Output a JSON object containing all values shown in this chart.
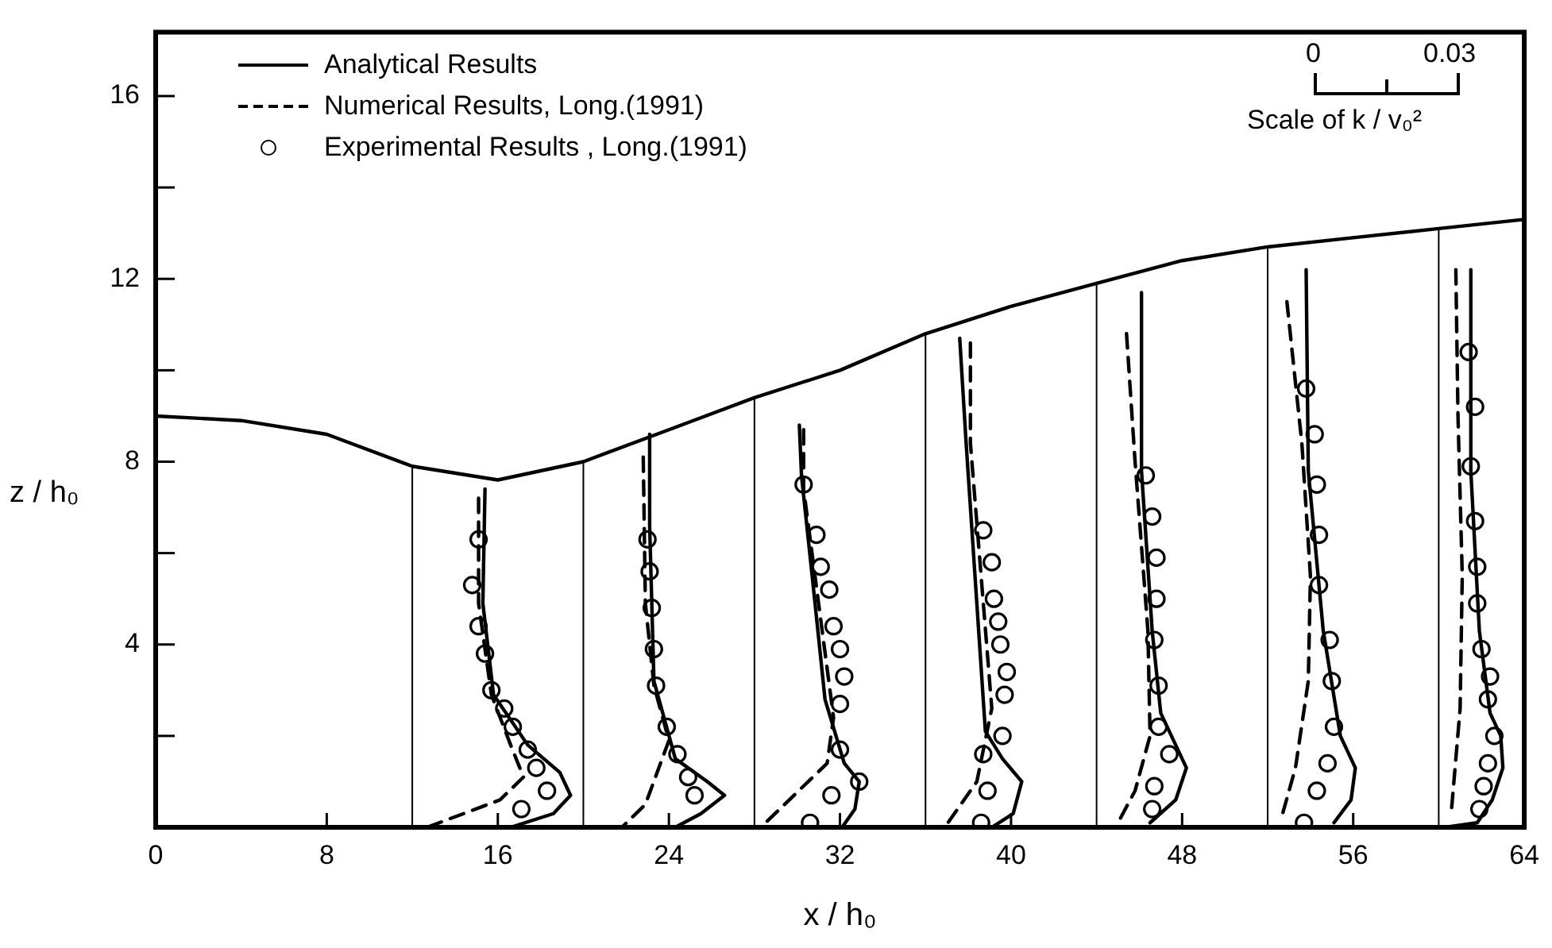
{
  "chart_data": {
    "type": "line",
    "xlabel": "x / h₀",
    "ylabel": "z / h₀",
    "xlim": [
      0,
      64
    ],
    "ylim": [
      0,
      17.4
    ],
    "xticks": [
      0,
      8,
      16,
      24,
      32,
      40,
      48,
      56,
      64
    ],
    "yticks": [
      {
        "value": 2,
        "label": null
      },
      4,
      {
        "value": 6,
        "label": null
      },
      8,
      {
        "value": 10,
        "label": null
      },
      12,
      {
        "value": 14,
        "label": null
      },
      16
    ],
    "grid": false,
    "legend": "top left",
    "annotations": [
      "0",
      "0.03",
      "Scale of k / v₀²"
    ],
    "series": [
      {
        "type": "line",
        "color": "#000000",
        "marker": "none",
        "line_style": "solid",
        "x": [
          0,
          4,
          8,
          12,
          16,
          20,
          24,
          28,
          32,
          36,
          40,
          44,
          48,
          52,
          56,
          60,
          64
        ],
        "values": [
          9.0,
          8.9,
          8.6,
          7.9,
          7.6,
          8.0,
          8.7,
          9.4,
          10.0,
          10.8,
          11.4,
          11.9,
          12.4,
          12.7,
          12.9,
          13.1,
          13.3
        ]
      },
      {
        "type": "line",
        "color": "#000000",
        "marker": "none",
        "line_style": "solid",
        "x": [
          12,
          12
        ],
        "values": [
          0,
          7.9
        ]
      },
      {
        "type": "line",
        "color": "#000000",
        "marker": "none",
        "line_style": "solid",
        "x": [
          20,
          20
        ],
        "values": [
          0,
          8.0
        ]
      },
      {
        "type": "line",
        "color": "#000000",
        "marker": "none",
        "line_style": "solid",
        "x": [
          28,
          28
        ],
        "values": [
          0,
          9.4
        ]
      },
      {
        "type": "line",
        "color": "#000000",
        "marker": "none",
        "line_style": "solid",
        "x": [
          36,
          36
        ],
        "values": [
          0,
          10.8
        ]
      },
      {
        "type": "line",
        "color": "#000000",
        "marker": "none",
        "line_style": "solid",
        "x": [
          44,
          44
        ],
        "values": [
          0,
          11.9
        ]
      },
      {
        "type": "line",
        "color": "#000000",
        "marker": "none",
        "line_style": "solid",
        "x": [
          52,
          52
        ],
        "values": [
          0,
          12.7
        ]
      },
      {
        "type": "line",
        "color": "#000000",
        "marker": "none",
        "line_style": "solid",
        "x": [
          60,
          60
        ],
        "values": [
          0,
          13.1
        ]
      },
      {
        "type": "line",
        "name": "Analytical Results",
        "color": "#000000",
        "marker": "none",
        "line_style": "solid",
        "x": [
          15.4,
          15.3,
          15.8,
          17.4,
          18.9,
          19.4,
          18.6,
          16.6
        ],
        "values": [
          7.4,
          4.9,
          2.9,
          1.8,
          1.2,
          0.7,
          0.3,
          0.0
        ]
      },
      {
        "type": "line",
        "color": "#000000",
        "marker": "none",
        "line_style": "solid",
        "x": [
          23.1,
          23.1,
          23.3,
          24.3,
          25.8,
          26.6,
          25.5,
          24.3
        ],
        "values": [
          8.6,
          6.6,
          3.2,
          1.5,
          1.0,
          0.7,
          0.3,
          0.0
        ]
      },
      {
        "type": "line",
        "color": "#000000",
        "marker": "none",
        "line_style": "solid",
        "x": [
          30.1,
          30.2,
          30.7,
          31.3,
          32.2,
          32.9,
          32.7,
          32.1
        ],
        "values": [
          8.8,
          7.7,
          5.5,
          2.8,
          1.4,
          1.0,
          0.4,
          0.0
        ]
      },
      {
        "type": "line",
        "color": "#000000",
        "marker": "none",
        "line_style": "solid",
        "x": [
          37.6,
          37.9,
          38.4,
          38.8,
          39.6,
          40.5,
          40.1,
          39.1
        ],
        "values": [
          10.7,
          8.4,
          4.9,
          2.1,
          1.5,
          1.0,
          0.3,
          0.0
        ]
      },
      {
        "type": "line",
        "color": "#000000",
        "marker": "none",
        "line_style": "solid",
        "x": [
          46.1,
          46.1,
          46.6,
          47.0,
          48.2,
          47.7,
          46.5
        ],
        "values": [
          11.7,
          7.8,
          4.3,
          2.5,
          1.3,
          0.6,
          0.1
        ]
      },
      {
        "type": "line",
        "color": "#000000",
        "marker": "none",
        "line_style": "solid",
        "x": [
          53.8,
          53.9,
          54.6,
          55.4,
          56.1,
          55.9,
          55.1
        ],
        "values": [
          12.2,
          7.8,
          4.3,
          2.0,
          1.3,
          0.6,
          0.1
        ]
      },
      {
        "type": "line",
        "color": "#000000",
        "marker": "none",
        "line_style": "solid",
        "x": [
          61.5,
          61.5,
          61.9,
          62.4,
          62.9,
          63.0,
          62.5,
          61.8,
          60.3
        ],
        "values": [
          12.2,
          7.8,
          4.3,
          2.5,
          2.0,
          1.3,
          0.6,
          0.1,
          0.0
        ]
      },
      {
        "type": "line",
        "name": "Numerical Results, Long.(1991)",
        "color": "#000000",
        "marker": "none",
        "line_style": "dashed",
        "x": [
          15.1,
          15.1,
          15.7,
          16.6,
          17.2,
          16.1,
          12.7
        ],
        "values": [
          7.2,
          4.9,
          2.9,
          1.8,
          1.1,
          0.6,
          0.0
        ]
      },
      {
        "type": "line",
        "color": "#000000",
        "marker": "none",
        "line_style": "dashed",
        "x": [
          22.8,
          22.9,
          23.3,
          24.0,
          22.9,
          21.8
        ],
        "values": [
          8.1,
          4.9,
          3.1,
          1.9,
          0.5,
          0.0
        ]
      },
      {
        "type": "line",
        "color": "#000000",
        "marker": "none",
        "line_style": "dashed",
        "x": [
          30.3,
          30.3,
          31.0,
          31.7,
          31.4,
          28.3
        ],
        "values": [
          8.7,
          7.4,
          4.9,
          2.4,
          1.4,
          0.0
        ]
      },
      {
        "type": "line",
        "color": "#000000",
        "marker": "none",
        "line_style": "dashed",
        "x": [
          38.1,
          38.1,
          38.6,
          39.1,
          38.4,
          36.9
        ],
        "values": [
          10.6,
          8.4,
          5.5,
          2.6,
          1.0,
          0.0
        ]
      },
      {
        "type": "line",
        "color": "#000000",
        "marker": "none",
        "line_style": "dashed",
        "x": [
          45.4,
          45.8,
          46.4,
          46.5,
          45.8,
          45.0
        ],
        "values": [
          10.8,
          8.0,
          4.3,
          2.0,
          0.8,
          0.1
        ]
      },
      {
        "type": "line",
        "color": "#000000",
        "marker": "none",
        "line_style": "dashed",
        "x": [
          52.9,
          53.6,
          54.0,
          53.9,
          53.3,
          52.7
        ],
        "values": [
          11.5,
          8.4,
          5.5,
          3.2,
          1.3,
          0.3
        ]
      },
      {
        "type": "line",
        "color": "#000000",
        "marker": "none",
        "line_style": "dashed",
        "x": [
          60.8,
          60.9,
          61.1,
          61.0,
          60.6
        ],
        "values": [
          12.2,
          9.0,
          5.5,
          2.6,
          0.4
        ]
      },
      {
        "type": "scatter",
        "name": "Experimental Results , Long.(1991)",
        "color": "#000000",
        "marker": "circle",
        "x": [
          15.1,
          14.8,
          15.1,
          15.4,
          15.7,
          16.3,
          16.7,
          17.4,
          17.8,
          18.3,
          17.1
        ],
        "values": [
          6.3,
          5.3,
          4.4,
          3.8,
          3.0,
          2.6,
          2.2,
          1.7,
          1.3,
          0.8,
          0.4
        ]
      },
      {
        "type": "scatter",
        "color": "#000000",
        "marker": "circle",
        "x": [
          23.0,
          23.1,
          23.2,
          23.3,
          23.4,
          23.9,
          24.4,
          24.9,
          25.2
        ],
        "values": [
          6.3,
          5.6,
          4.8,
          3.9,
          3.1,
          2.2,
          1.6,
          1.1,
          0.7
        ]
      },
      {
        "type": "scatter",
        "color": "#000000",
        "marker": "circle",
        "x": [
          30.3,
          30.9,
          31.1,
          31.5,
          31.7,
          32.0,
          32.2,
          32.0,
          32.0,
          32.9,
          31.6,
          30.6
        ],
        "values": [
          7.5,
          6.4,
          5.7,
          5.2,
          4.4,
          3.9,
          3.3,
          2.7,
          1.7,
          1.0,
          0.7,
          0.1
        ]
      },
      {
        "type": "scatter",
        "color": "#000000",
        "marker": "circle",
        "x": [
          38.7,
          39.1,
          39.2,
          39.4,
          39.5,
          39.8,
          39.7,
          39.6,
          38.7,
          38.9,
          38.6
        ],
        "values": [
          6.5,
          5.8,
          5.0,
          4.5,
          4.0,
          3.4,
          2.9,
          2.0,
          1.6,
          0.8,
          0.1
        ]
      },
      {
        "type": "scatter",
        "color": "#000000",
        "marker": "circle",
        "x": [
          46.3,
          46.6,
          46.8,
          46.8,
          46.7,
          46.9,
          46.9,
          47.4,
          46.7,
          46.6
        ],
        "values": [
          7.7,
          6.8,
          5.9,
          5.0,
          4.1,
          3.1,
          2.2,
          1.6,
          0.9,
          0.4
        ]
      },
      {
        "type": "scatter",
        "color": "#000000",
        "marker": "circle",
        "x": [
          53.8,
          54.2,
          54.3,
          54.4,
          54.4,
          54.9,
          55.0,
          55.1,
          54.8,
          54.3,
          53.7
        ],
        "values": [
          9.6,
          8.6,
          7.5,
          6.4,
          5.3,
          4.1,
          3.2,
          2.2,
          1.4,
          0.8,
          0.1
        ]
      },
      {
        "type": "scatter",
        "color": "#000000",
        "marker": "circle",
        "x": [
          61.4,
          61.7,
          61.5,
          61.7,
          61.8,
          61.8,
          62.0,
          62.4,
          62.3,
          62.6,
          62.3,
          62.1,
          61.9
        ],
        "values": [
          10.4,
          9.2,
          7.9,
          6.7,
          5.7,
          4.9,
          3.9,
          3.3,
          2.8,
          2.0,
          1.4,
          0.9,
          0.4
        ]
      }
    ]
  }
}
